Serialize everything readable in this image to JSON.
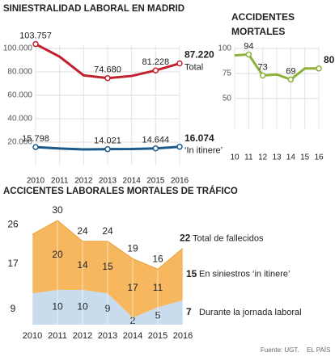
{
  "chart_data": [
    {
      "type": "line",
      "title": "SINIESTRALIDAD LABORAL EN MADRID",
      "categories": [
        "2010",
        "2011",
        "2012",
        "2013",
        "2014",
        "2015",
        "2016"
      ],
      "series": [
        {
          "name": "Total",
          "color": "#c3202f",
          "values": [
            103757,
            93000,
            77000,
            74680,
            76500,
            81228,
            87220
          ],
          "value_labels": [
            "103.757",
            null,
            null,
            "74.680",
            null,
            "81.228",
            "87.220"
          ]
        },
        {
          "name": "‘In itinere’",
          "color": "#1b5a8a",
          "values": [
            15798,
            14600,
            13800,
            14021,
            14100,
            14644,
            16074
          ],
          "value_labels": [
            "15.798",
            null,
            null,
            "14.021",
            null,
            "14.644",
            "16.074"
          ]
        }
      ],
      "ylim": [
        0,
        110000
      ],
      "yticks": [
        {
          "value": 20000,
          "label": "20.000"
        },
        {
          "value": 40000,
          "label": "40.000"
        },
        {
          "value": 60000,
          "label": "60.000"
        },
        {
          "value": 80000,
          "label": "80.000"
        },
        {
          "value": 100000,
          "label": "100.000"
        }
      ],
      "grid": true
    },
    {
      "type": "line",
      "title": "ACCIDENTES MORTALES",
      "categories": [
        "10",
        "11",
        "12",
        "13",
        "14",
        "15",
        "16"
      ],
      "values": [
        93,
        94,
        73,
        74,
        69,
        80,
        80
      ],
      "color": "#8cb23a",
      "value_labels": [
        null,
        "94",
        "73",
        null,
        "69",
        null,
        "80"
      ],
      "ylim": [
        20,
        110
      ],
      "yticks": [
        50,
        75,
        100
      ],
      "grid": true
    },
    {
      "type": "stacked_area",
      "title": "ACCICENTES LABORALES MORTALES DE TRÁFICO",
      "categories": [
        "2010",
        "2011",
        "2012",
        "2013",
        "2014",
        "2015",
        "2016"
      ],
      "series": [
        {
          "name": "Durante la jornada laboral",
          "color": "#c8dcee",
          "values": [
            9,
            10,
            10,
            9,
            2,
            5,
            7
          ]
        },
        {
          "name": "En siniestros ‘in itinere’",
          "color": "#f6b75e",
          "values": [
            17,
            20,
            14,
            15,
            17,
            11,
            15
          ]
        }
      ],
      "totals": {
        "name": "Total de fallecidos",
        "values": [
          26,
          30,
          24,
          24,
          19,
          16,
          22
        ]
      },
      "ylim": [
        0,
        32
      ]
    }
  ],
  "footer": {
    "source": "Fuente: UGT.",
    "credit": "EL PAÍS"
  }
}
